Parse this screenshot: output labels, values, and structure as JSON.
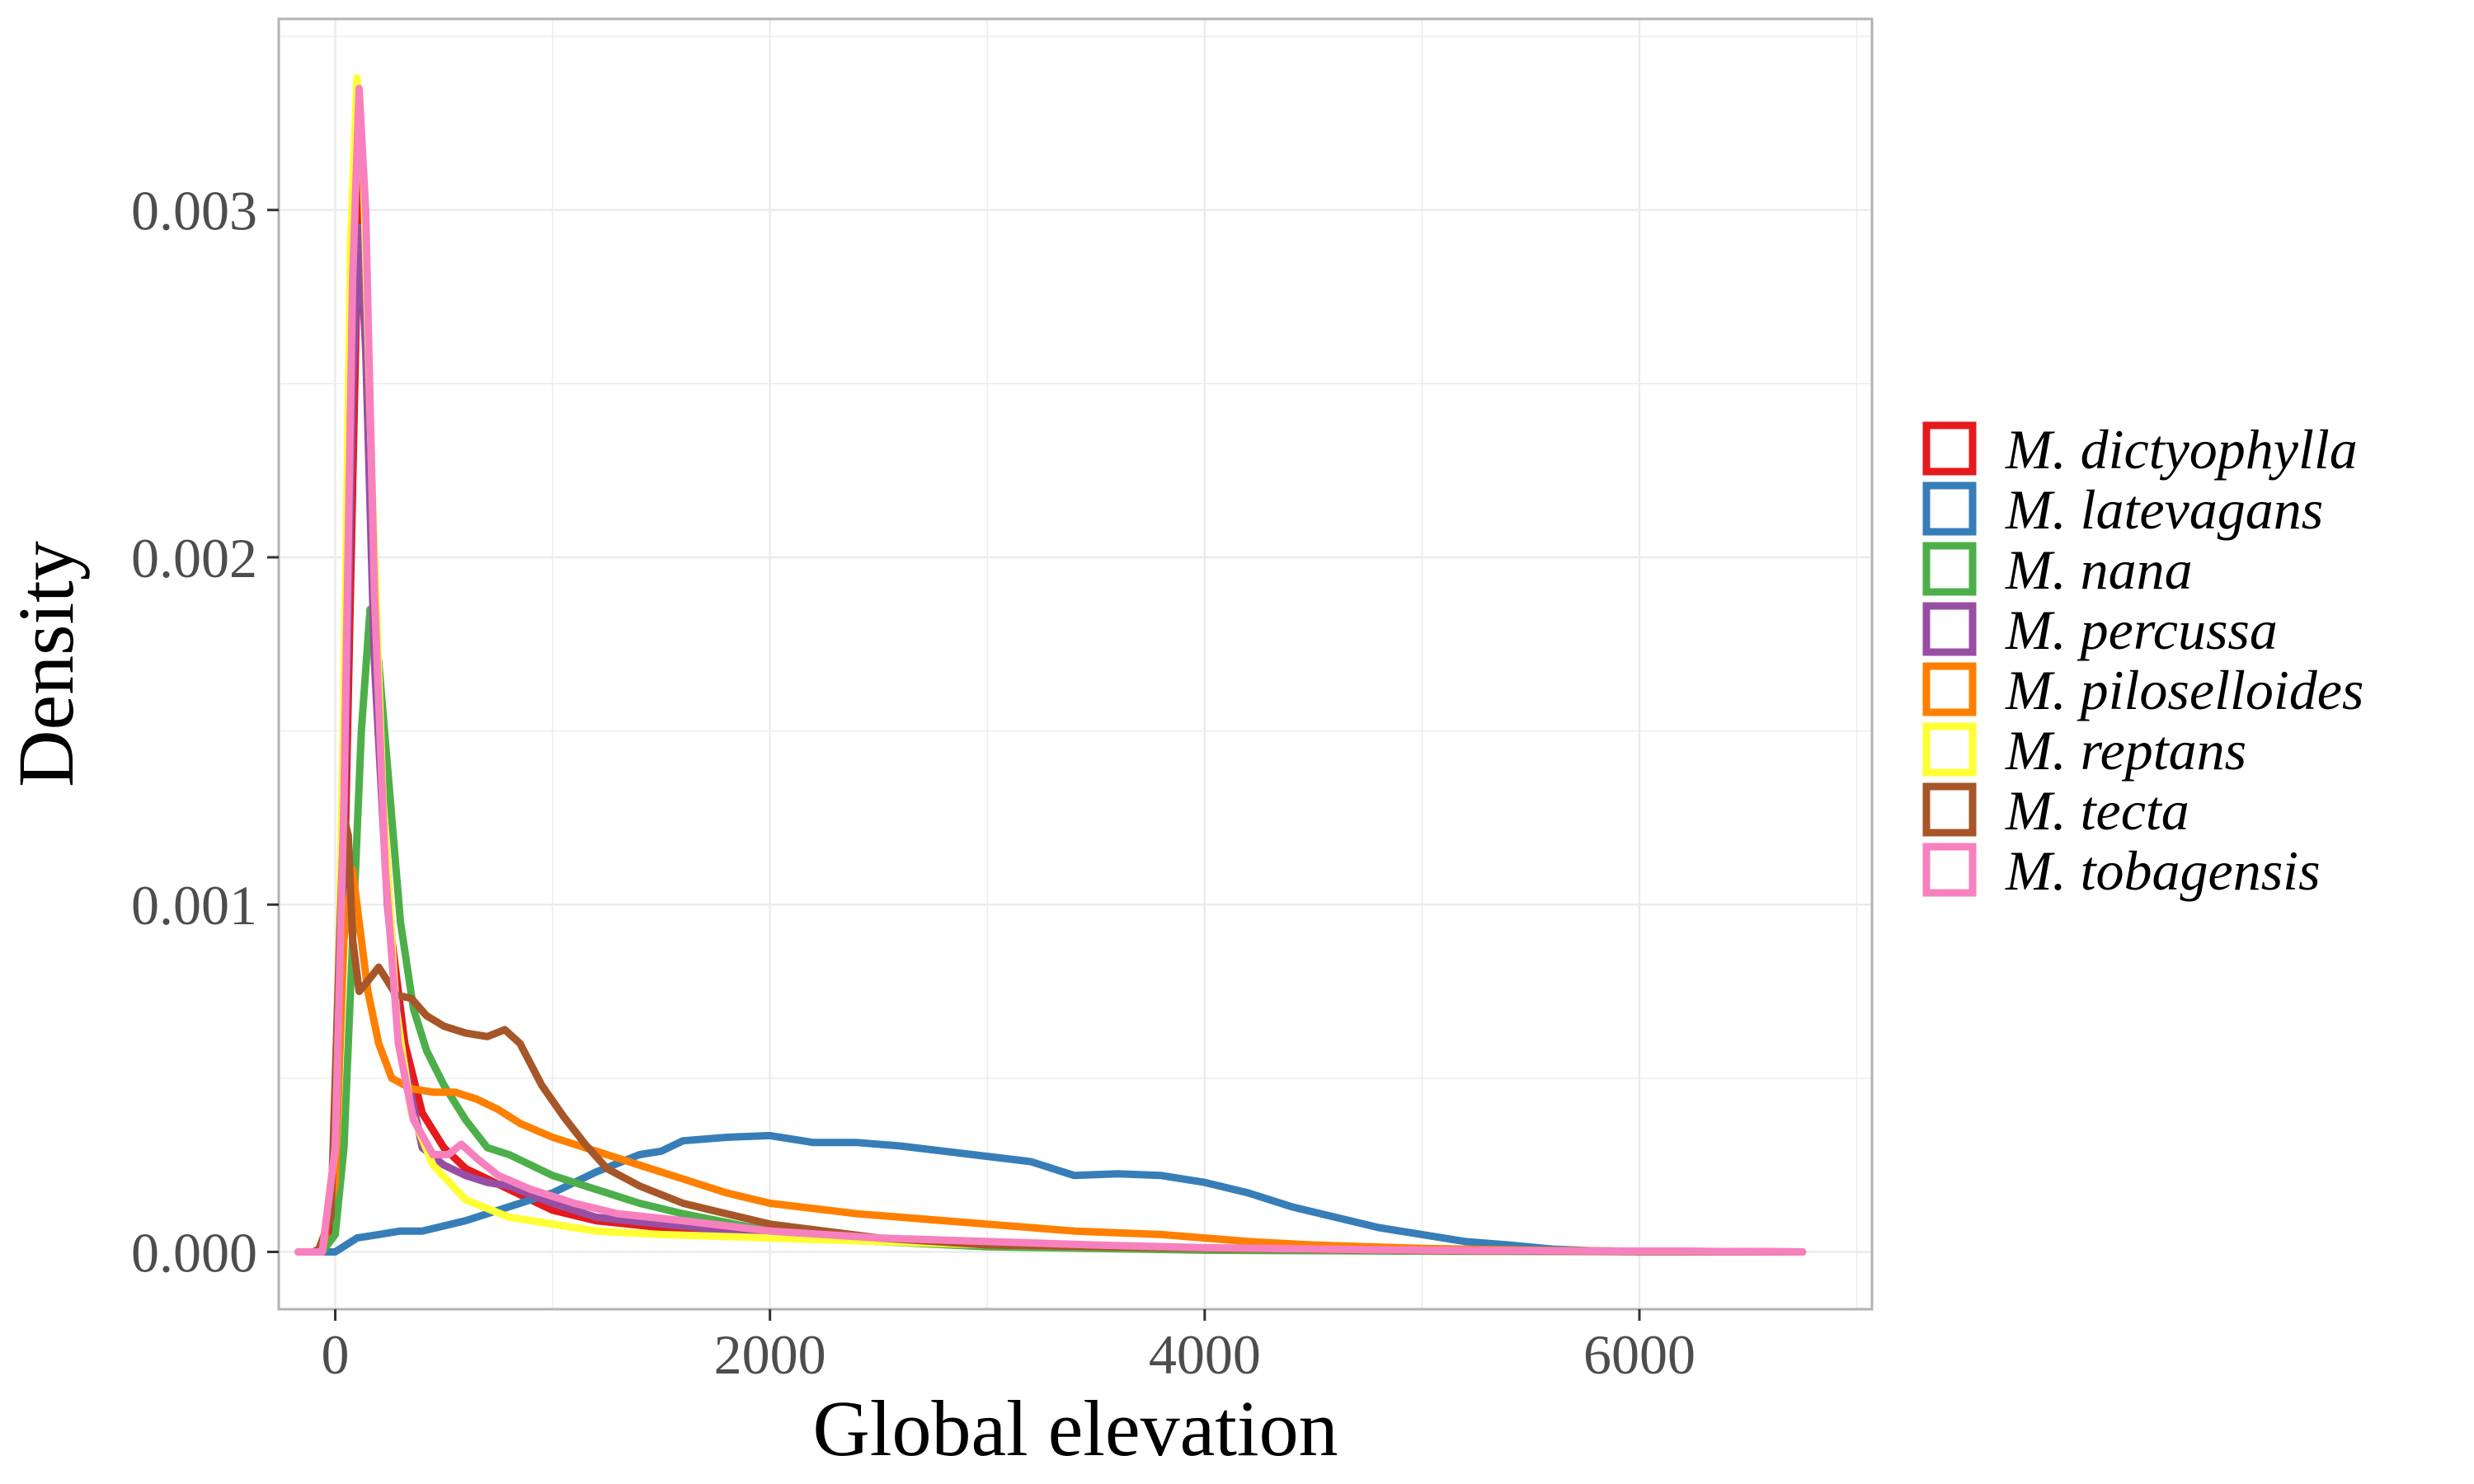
{
  "chart_data": {
    "type": "line",
    "title": "",
    "xlabel": "Global elevation",
    "ylabel": "Density",
    "xlim": [
      -260,
      7070
    ],
    "ylim": [
      -0.000165,
      0.00355
    ],
    "x_ticks": [
      0,
      2000,
      4000,
      6000
    ],
    "x_tick_labels": [
      "0",
      "2000",
      "4000",
      "6000"
    ],
    "y_ticks": [
      0.0,
      0.001,
      0.002,
      0.003
    ],
    "y_tick_labels": [
      "0.000",
      "0.001",
      "0.002",
      "0.003"
    ],
    "grid": true,
    "legend_position": "right",
    "series": [
      {
        "name": "M. dictyophylla",
        "color": "#e41a1c",
        "points": [
          [
            -170,
            0
          ],
          [
            -100,
            0
          ],
          [
            -40,
            2e-05
          ],
          [
            0,
            0.0002
          ],
          [
            40,
            0.001
          ],
          [
            80,
            0.0022
          ],
          [
            110,
            0.0031
          ],
          [
            130,
            0.0031
          ],
          [
            160,
            0.0024
          ],
          [
            200,
            0.0015
          ],
          [
            260,
            0.0009
          ],
          [
            320,
            0.0006
          ],
          [
            400,
            0.0004
          ],
          [
            500,
            0.0003
          ],
          [
            600,
            0.00024
          ],
          [
            800,
            0.00018
          ],
          [
            1000,
            0.00012
          ],
          [
            1200,
            9e-05
          ],
          [
            1500,
            7e-05
          ],
          [
            2000,
            5e-05
          ],
          [
            2500,
            3e-05
          ],
          [
            3000,
            2e-05
          ],
          [
            4000,
            1e-05
          ],
          [
            5000,
            5e-06
          ],
          [
            6000,
            2e-06
          ],
          [
            6750,
            0
          ]
        ]
      },
      {
        "name": "M. latevagans",
        "color": "#377eb8",
        "points": [
          [
            -170,
            0
          ],
          [
            0,
            0
          ],
          [
            50,
            2e-05
          ],
          [
            100,
            4e-05
          ],
          [
            200,
            5e-05
          ],
          [
            300,
            6e-05
          ],
          [
            400,
            6e-05
          ],
          [
            600,
            9e-05
          ],
          [
            800,
            0.00013
          ],
          [
            1000,
            0.00017
          ],
          [
            1200,
            0.00023
          ],
          [
            1400,
            0.00028
          ],
          [
            1500,
            0.00029
          ],
          [
            1600,
            0.00032
          ],
          [
            1800,
            0.00033
          ],
          [
            2000,
            0.000335
          ],
          [
            2200,
            0.000315
          ],
          [
            2400,
            0.000315
          ],
          [
            2600,
            0.000305
          ],
          [
            2800,
            0.00029
          ],
          [
            3000,
            0.000275
          ],
          [
            3200,
            0.00026
          ],
          [
            3400,
            0.00022
          ],
          [
            3600,
            0.000225
          ],
          [
            3800,
            0.00022
          ],
          [
            4000,
            0.0002
          ],
          [
            4200,
            0.00017
          ],
          [
            4400,
            0.00013
          ],
          [
            4600,
            0.0001
          ],
          [
            4800,
            7e-05
          ],
          [
            5000,
            5e-05
          ],
          [
            5200,
            3e-05
          ],
          [
            5400,
            2e-05
          ],
          [
            5600,
            8e-06
          ],
          [
            5800,
            3e-06
          ],
          [
            6000,
            1e-06
          ],
          [
            6750,
            0
          ]
        ]
      },
      {
        "name": "M. nana",
        "color": "#4daf4a",
        "points": [
          [
            -170,
            0
          ],
          [
            -60,
            0
          ],
          [
            0,
            5e-05
          ],
          [
            40,
            0.0003
          ],
          [
            80,
            0.0009
          ],
          [
            120,
            0.0015
          ],
          [
            160,
            0.00185
          ],
          [
            200,
            0.0017
          ],
          [
            240,
            0.0014
          ],
          [
            300,
            0.00095
          ],
          [
            360,
            0.0007
          ],
          [
            420,
            0.00058
          ],
          [
            500,
            0.00048
          ],
          [
            600,
            0.00038
          ],
          [
            700,
            0.0003
          ],
          [
            800,
            0.00028
          ],
          [
            1000,
            0.00022
          ],
          [
            1200,
            0.00018
          ],
          [
            1400,
            0.00014
          ],
          [
            1600,
            0.00011
          ],
          [
            2000,
            6e-05
          ],
          [
            2500,
            3e-05
          ],
          [
            3000,
            1.5e-05
          ],
          [
            4000,
            5e-06
          ],
          [
            5000,
            2e-06
          ],
          [
            6750,
            0
          ]
        ]
      },
      {
        "name": "M. percussa",
        "color": "#984ea3",
        "points": [
          [
            -170,
            0
          ],
          [
            -60,
            0
          ],
          [
            0,
            0.0002
          ],
          [
            40,
            0.0012
          ],
          [
            80,
            0.0025
          ],
          [
            110,
            0.00295
          ],
          [
            140,
            0.0026
          ],
          [
            180,
            0.0017
          ],
          [
            240,
            0.001
          ],
          [
            300,
            0.0006
          ],
          [
            400,
            0.0003
          ],
          [
            500,
            0.00025
          ],
          [
            600,
            0.00022
          ],
          [
            700,
            0.0002
          ],
          [
            800,
            0.00019
          ],
          [
            1000,
            0.00014
          ],
          [
            1200,
            0.0001
          ],
          [
            1500,
            8e-05
          ],
          [
            2000,
            5e-05
          ],
          [
            3000,
            2e-05
          ],
          [
            4000,
            1e-05
          ],
          [
            5000,
            4e-06
          ],
          [
            6000,
            1e-06
          ],
          [
            6750,
            0
          ]
        ]
      },
      {
        "name": "M. piloselloides",
        "color": "#ff7f00",
        "points": [
          [
            -170,
            0
          ],
          [
            -60,
            0
          ],
          [
            0,
            0.0002
          ],
          [
            40,
            0.0009
          ],
          [
            80,
            0.0011
          ],
          [
            110,
            0.00095
          ],
          [
            150,
            0.00075
          ],
          [
            200,
            0.0006
          ],
          [
            260,
            0.0005
          ],
          [
            350,
            0.00047
          ],
          [
            450,
            0.00046
          ],
          [
            550,
            0.00046
          ],
          [
            650,
            0.00044
          ],
          [
            750,
            0.00041
          ],
          [
            850,
            0.00037
          ],
          [
            1000,
            0.00033
          ],
          [
            1200,
            0.00029
          ],
          [
            1400,
            0.00025
          ],
          [
            1600,
            0.00021
          ],
          [
            1800,
            0.00017
          ],
          [
            2000,
            0.00014
          ],
          [
            2200,
            0.000125
          ],
          [
            2400,
            0.00011
          ],
          [
            2600,
            0.0001
          ],
          [
            2800,
            9e-05
          ],
          [
            3000,
            8e-05
          ],
          [
            3200,
            7e-05
          ],
          [
            3400,
            6e-05
          ],
          [
            3800,
            5e-05
          ],
          [
            4000,
            4e-05
          ],
          [
            4200,
            3e-05
          ],
          [
            4500,
            2e-05
          ],
          [
            5000,
            1e-05
          ],
          [
            5500,
            5e-06
          ],
          [
            6000,
            2e-06
          ],
          [
            6750,
            0
          ]
        ]
      },
      {
        "name": "M. reptans",
        "color": "#ffff33",
        "points": [
          [
            -170,
            0
          ],
          [
            -60,
            0
          ],
          [
            0,
            0.0003
          ],
          [
            40,
            0.0016
          ],
          [
            70,
            0.0029
          ],
          [
            100,
            0.00338
          ],
          [
            130,
            0.0031
          ],
          [
            170,
            0.0022
          ],
          [
            220,
            0.0013
          ],
          [
            280,
            0.0007
          ],
          [
            350,
            0.0004
          ],
          [
            450,
            0.00025
          ],
          [
            600,
            0.00015
          ],
          [
            800,
            0.0001
          ],
          [
            1000,
            8e-05
          ],
          [
            1200,
            6e-05
          ],
          [
            1500,
            5e-05
          ],
          [
            2000,
            4e-05
          ],
          [
            2500,
            3e-05
          ],
          [
            3000,
            2e-05
          ],
          [
            4000,
            1e-05
          ],
          [
            5000,
            4e-06
          ],
          [
            6000,
            1e-06
          ],
          [
            6750,
            0
          ]
        ]
      },
      {
        "name": "M. tecta",
        "color": "#a65628",
        "points": [
          [
            -170,
            0
          ],
          [
            -80,
            0
          ],
          [
            -20,
            0.0001
          ],
          [
            20,
            0.0009
          ],
          [
            40,
            0.00125
          ],
          [
            60,
            0.0012
          ],
          [
            80,
            0.0009
          ],
          [
            110,
            0.00075
          ],
          [
            150,
            0.00078
          ],
          [
            200,
            0.00082
          ],
          [
            240,
            0.00078
          ],
          [
            280,
            0.00074
          ],
          [
            350,
            0.00073
          ],
          [
            420,
            0.00068
          ],
          [
            500,
            0.00065
          ],
          [
            600,
            0.00063
          ],
          [
            700,
            0.00062
          ],
          [
            780,
            0.00064
          ],
          [
            850,
            0.0006
          ],
          [
            950,
            0.00048
          ],
          [
            1050,
            0.00039
          ],
          [
            1150,
            0.00031
          ],
          [
            1250,
            0.00024
          ],
          [
            1400,
            0.00019
          ],
          [
            1600,
            0.00014
          ],
          [
            1800,
            0.00011
          ],
          [
            2000,
            8e-05
          ],
          [
            2500,
            4e-05
          ],
          [
            3000,
            2e-05
          ],
          [
            4000,
            1e-05
          ],
          [
            5000,
            4e-06
          ],
          [
            6000,
            1e-06
          ],
          [
            6750,
            0
          ]
        ]
      },
      {
        "name": "M. tobagensis",
        "color": "#f781bf",
        "points": [
          [
            -170,
            0
          ],
          [
            -60,
            0
          ],
          [
            0,
            0.0003
          ],
          [
            40,
            0.0013
          ],
          [
            80,
            0.0028
          ],
          [
            110,
            0.00335
          ],
          [
            140,
            0.003
          ],
          [
            180,
            0.0019
          ],
          [
            230,
            0.0011
          ],
          [
            290,
            0.0006
          ],
          [
            360,
            0.00038
          ],
          [
            450,
            0.00028
          ],
          [
            520,
            0.00028
          ],
          [
            580,
            0.00031
          ],
          [
            650,
            0.00027
          ],
          [
            750,
            0.00022
          ],
          [
            900,
            0.00018
          ],
          [
            1100,
            0.00014
          ],
          [
            1300,
            0.00011
          ],
          [
            1600,
            9e-05
          ],
          [
            2000,
            6e-05
          ],
          [
            2500,
            4e-05
          ],
          [
            3000,
            3e-05
          ],
          [
            3500,
            2e-05
          ],
          [
            4000,
            1.2e-05
          ],
          [
            5000,
            5e-06
          ],
          [
            6000,
            2e-06
          ],
          [
            6750,
            0
          ]
        ]
      }
    ]
  }
}
